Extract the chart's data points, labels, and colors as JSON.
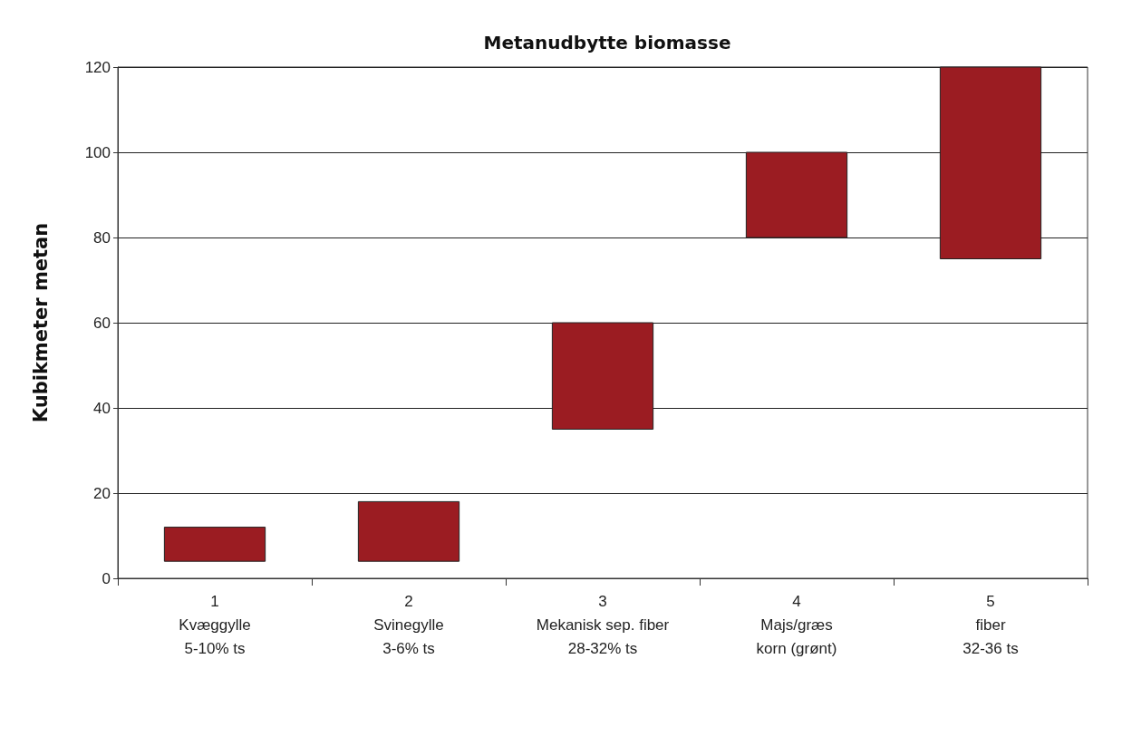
{
  "chart_data": {
    "type": "bar",
    "title": "Metanudbytte biomasse",
    "ylabel": "Kubikmeter metan",
    "categories": [
      "1\nKvæggylle\n5-10% ts",
      "2\nSvinegylle\n3-6% ts",
      "3\nMekanisk sep. fiber\n28-32% ts",
      "4\nMajs/græs\nkorn (grønt)",
      "5\nfiber\n32-36 ts"
    ],
    "base": [
      4,
      4,
      35,
      80,
      75
    ],
    "values": [
      8,
      14,
      25,
      20,
      45
    ],
    "color": "#9b1c22",
    "ylim": [
      0,
      120
    ],
    "yticks": [
      0,
      20,
      40,
      60,
      80,
      100,
      120
    ],
    "grid": "y"
  }
}
